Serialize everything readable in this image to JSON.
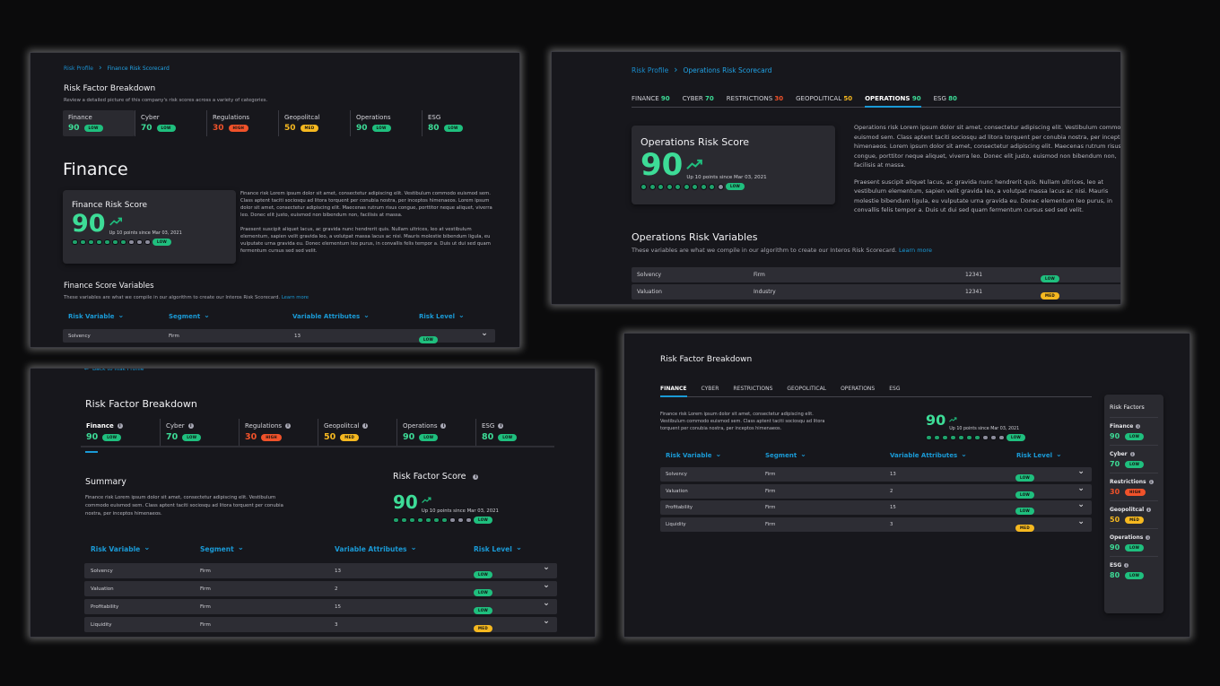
{
  "colors": {
    "low": "#1fbf7e",
    "med": "#f5b820",
    "high": "#f0522a",
    "low_text": "#3ddc97",
    "med_text": "#f5b820",
    "high_text": "#f0522a",
    "dot_on": "#1fa36c",
    "dot_off": "#8c8c9c",
    "link": "#1a9ad6"
  },
  "icons": {
    "breadcrumb_separator": "chevron-right-icon",
    "trend": "trending-up-icon",
    "info": "info-icon",
    "sort": "chevron-down-icon",
    "expand": "chevron-down-icon",
    "back": "arrow-left-icon"
  },
  "panel1": {
    "breadcrumb": {
      "root": "Risk Profile",
      "current": "Finance Risk Scorecard"
    },
    "title": "Risk Factor Breakdown",
    "subtitle": "Review a detailed picture of this company's risk scores across a variety of categories.",
    "factors": [
      {
        "label": "Finance",
        "score": "90",
        "level": "low",
        "level_label": "LOW"
      },
      {
        "label": "Cyber",
        "score": "70",
        "level": "low",
        "level_label": "LOW"
      },
      {
        "label": "Regulations",
        "score": "30",
        "level": "high",
        "level_label": "HIGH"
      },
      {
        "label": "Geopolitcal",
        "score": "50",
        "level": "med",
        "level_label": "MED"
      },
      {
        "label": "Operations",
        "score": "90",
        "level": "low",
        "level_label": "LOW"
      },
      {
        "label": "ESG",
        "score": "80",
        "level": "low",
        "level_label": "LOW"
      }
    ],
    "selected_factor": 0,
    "heading": "Finance",
    "score_card": {
      "title": "Finance Risk Score",
      "score": "90",
      "change": "Up 10 points since Mar 03, 2021",
      "level": "low",
      "level_label": "LOW",
      "filled": 7,
      "total": 10
    },
    "description": [
      "Finance risk Lorem ipsum dolor sit amet, consectetur adipiscing elit. Vestibulum commodo euismod sem. Class aptent taciti sociosqu ad litora torquent per conubia nostra, per inceptos himenaeos. Lorem ipsum dolor sit amet, consectetur adipiscing elit. Maecenas rutrum risus congue, porttitor neque aliquet, viverra leo. Donec elit justo, euismod non bibendum non, facilisis at massa.",
      "Praesent suscipit aliquet lacus, ac gravida nunc hendrerit quis. Nullam ultrices, leo at vestibulum elementum, sapien velit gravida leo, a volutpat massa lacus ac nisi. Mauris molestie bibendum ligula, eu vulputate urna gravida eu. Donec elementum leo purus, in convallis felis tempor a. Duis ut dui sed quam fermentum cursus sed sed velit."
    ],
    "variables": {
      "title": "Finance Score Variables",
      "subtitle": "These variables are what we compile in our algorithm to create our Interos Risk Scorecard.",
      "learn_more": "Learn more"
    },
    "table": {
      "headers": [
        "Risk Variable",
        "Segment",
        "Variable Attributes",
        "Risk Level"
      ],
      "rows": [
        {
          "variable": "Solvency",
          "segment": "Firm",
          "attributes": "13",
          "level": "low",
          "level_label": "LOW"
        }
      ]
    }
  },
  "panel2": {
    "breadcrumb": {
      "root": "Risk Profile",
      "current": "Operations Risk Scorecard"
    },
    "tabs": [
      {
        "label": "FINANCE",
        "score": "90",
        "level": "low"
      },
      {
        "label": "CYBER",
        "score": "70",
        "level": "low"
      },
      {
        "label": "RESTRICTIONS",
        "score": "30",
        "level": "high"
      },
      {
        "label": "GEOPOLITICAL",
        "score": "50",
        "level": "med"
      },
      {
        "label": "OPERATIONS",
        "score": "90",
        "level": "low"
      },
      {
        "label": "ESG",
        "score": "80",
        "level": "low"
      }
    ],
    "active_tab": 4,
    "score_card": {
      "title": "Operations Risk Score",
      "score": "90",
      "change": "Up 10 points since Mar 03, 2021",
      "level": "low",
      "level_label": "LOW",
      "filled": 9,
      "total": 10
    },
    "description": [
      "Operations risk Lorem ipsum dolor sit amet, consectetur adipiscing elit. Vestibulum commodo euismod sem. Class aptent taciti sociosqu ad litora torquent per conubia nostra, per inceptos himenaeos. Lorem ipsum dolor sit amet, consectetur adipiscing elit. Maecenas rutrum risus congue, porttitor neque aliquet, viverra leo. Donec elit justo, euismod non bibendum non, facilisis at massa.",
      "Praesent suscipit aliquet lacus, ac gravida nunc hendrerit quis. Nullam ultrices, leo at vestibulum elementum, sapien velit gravida leo, a volutpat massa lacus ac nisi. Mauris molestie bibendum ligula, eu vulputate urna gravida eu. Donec elementum leo purus, in convallis felis tempor a. Duis ut dui sed quam fermentum cursus sed sed velit."
    ],
    "variables": {
      "title": "Operations Risk Variables",
      "subtitle": "These variables are what we compile in our algorithm to create our Interos Risk Scorecard.",
      "learn_more": "Learn more"
    },
    "table": {
      "rows": [
        {
          "variable": "Solvency",
          "segment": "Firm",
          "attributes": "12341",
          "level": "low",
          "level_label": "LOW"
        },
        {
          "variable": "Valuation",
          "segment": "Industry",
          "attributes": "12341",
          "level": "med",
          "level_label": "MED"
        }
      ]
    }
  },
  "panel3": {
    "back_link": "Back to Risk Profile",
    "title": "Risk Factor Breakdown",
    "factors": [
      {
        "label": "Finance",
        "score": "90",
        "level": "low",
        "level_label": "LOW"
      },
      {
        "label": "Cyber",
        "score": "70",
        "level": "low",
        "level_label": "LOW"
      },
      {
        "label": "Regulations",
        "score": "30",
        "level": "high",
        "level_label": "HIGH"
      },
      {
        "label": "Geopolitcal",
        "score": "50",
        "level": "med",
        "level_label": "MED"
      },
      {
        "label": "Operations",
        "score": "90",
        "level": "low",
        "level_label": "LOW"
      },
      {
        "label": "ESG",
        "score": "80",
        "level": "low",
        "level_label": "LOW"
      }
    ],
    "selected_factor": 0,
    "summary": {
      "title": "Summary",
      "text": "Finance risk Lorem ipsum dolor sit amet, consectetur adipiscing elit. Vestibulum commodo euismod sem. Class aptent taciti sociosqu ad litora torquent per conubia nostra, per inceptos himenaeos."
    },
    "score_card": {
      "title": "Risk Factor Score",
      "score": "90",
      "change": "Up 10 points since Mar 03, 2021",
      "level": "low",
      "level_label": "LOW",
      "filled": 7,
      "total": 10
    },
    "table": {
      "headers": [
        "Risk Variable",
        "Segment",
        "Variable Attributes",
        "Risk Level"
      ],
      "rows": [
        {
          "variable": "Solvency",
          "segment": "Firm",
          "attributes": "13",
          "level": "low",
          "level_label": "LOW"
        },
        {
          "variable": "Valuation",
          "segment": "Firm",
          "attributes": "2",
          "level": "low",
          "level_label": "LOW"
        },
        {
          "variable": "Profitability",
          "segment": "Firm",
          "attributes": "15",
          "level": "low",
          "level_label": "LOW"
        },
        {
          "variable": "Liquidity",
          "segment": "Firm",
          "attributes": "3",
          "level": "med",
          "level_label": "MED"
        }
      ]
    }
  },
  "panel4": {
    "title": "Risk Factor Breakdown",
    "tabs": [
      {
        "label": "FINANCE"
      },
      {
        "label": "CYBER"
      },
      {
        "label": "RESTRICTIONS"
      },
      {
        "label": "GEOPOLITICAL"
      },
      {
        "label": "OPERATIONS"
      },
      {
        "label": "ESG"
      }
    ],
    "active_tab": 0,
    "text": "Finance risk Lorem ipsum dolor sit amet, consectetur adipiscing elit. Vestibulum commodo euismod sem. Class aptent taciti sociosqu ad litora torquent per conubia nostra, per inceptos himenaeos.",
    "score_card": {
      "score": "90",
      "change": "Up 10 points since Mar 03, 2021",
      "level": "low",
      "level_label": "LOW",
      "filled": 7,
      "total": 10
    },
    "table": {
      "headers": [
        "Risk Variable",
        "Segment",
        "Variable Attributes",
        "Risk Level"
      ],
      "rows": [
        {
          "variable": "Solvency",
          "segment": "Firm",
          "attributes": "13",
          "level": "low",
          "level_label": "LOW"
        },
        {
          "variable": "Valuation",
          "segment": "Firm",
          "attributes": "2",
          "level": "low",
          "level_label": "LOW"
        },
        {
          "variable": "Profitability",
          "segment": "Firm",
          "attributes": "15",
          "level": "low",
          "level_label": "LOW"
        },
        {
          "variable": "Liquidity",
          "segment": "Firm",
          "attributes": "3",
          "level": "med",
          "level_label": "MED"
        }
      ]
    },
    "sidebar": {
      "title": "Risk Factors",
      "factors": [
        {
          "label": "Finance",
          "score": "90",
          "level": "low",
          "level_label": "LOW"
        },
        {
          "label": "Cyber",
          "score": "70",
          "level": "low",
          "level_label": "LOW"
        },
        {
          "label": "Restrictions",
          "score": "30",
          "level": "high",
          "level_label": "HIGH"
        },
        {
          "label": "Geopolitcal",
          "score": "50",
          "level": "med",
          "level_label": "MED"
        },
        {
          "label": "Operations",
          "score": "90",
          "level": "low",
          "level_label": "LOW"
        },
        {
          "label": "ESG",
          "score": "80",
          "level": "low",
          "level_label": "LOW"
        }
      ]
    }
  }
}
